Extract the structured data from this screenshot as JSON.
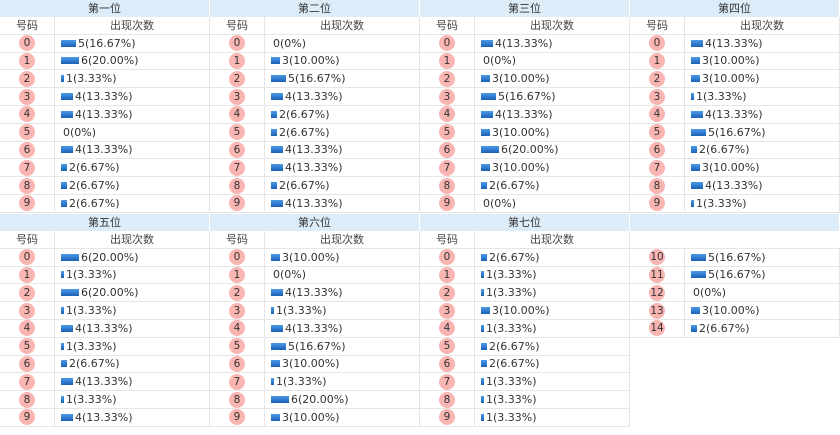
{
  "labels": {
    "number": "号码",
    "count": "出现次数"
  },
  "positions": [
    {
      "title": "第一位",
      "rows": [
        {
          "n": "0",
          "text": "5(16.67%)",
          "pct": 16.67
        },
        {
          "n": "1",
          "text": "6(20.00%)",
          "pct": 20.0
        },
        {
          "n": "2",
          "text": "1(3.33%)",
          "pct": 3.33
        },
        {
          "n": "3",
          "text": "4(13.33%)",
          "pct": 13.33
        },
        {
          "n": "4",
          "text": "4(13.33%)",
          "pct": 13.33
        },
        {
          "n": "5",
          "text": "0(0%)",
          "pct": 0
        },
        {
          "n": "6",
          "text": "4(13.33%)",
          "pct": 13.33
        },
        {
          "n": "7",
          "text": "2(6.67%)",
          "pct": 6.67
        },
        {
          "n": "8",
          "text": "2(6.67%)",
          "pct": 6.67
        },
        {
          "n": "9",
          "text": "2(6.67%)",
          "pct": 6.67
        }
      ]
    },
    {
      "title": "第二位",
      "rows": [
        {
          "n": "0",
          "text": "0(0%)",
          "pct": 0
        },
        {
          "n": "1",
          "text": "3(10.00%)",
          "pct": 10.0
        },
        {
          "n": "2",
          "text": "5(16.67%)",
          "pct": 16.67
        },
        {
          "n": "3",
          "text": "4(13.33%)",
          "pct": 13.33
        },
        {
          "n": "4",
          "text": "2(6.67%)",
          "pct": 6.67
        },
        {
          "n": "5",
          "text": "2(6.67%)",
          "pct": 6.67
        },
        {
          "n": "6",
          "text": "4(13.33%)",
          "pct": 13.33
        },
        {
          "n": "7",
          "text": "4(13.33%)",
          "pct": 13.33
        },
        {
          "n": "8",
          "text": "2(6.67%)",
          "pct": 6.67
        },
        {
          "n": "9",
          "text": "4(13.33%)",
          "pct": 13.33
        }
      ]
    },
    {
      "title": "第三位",
      "rows": [
        {
          "n": "0",
          "text": "4(13.33%)",
          "pct": 13.33
        },
        {
          "n": "1",
          "text": "0(0%)",
          "pct": 0
        },
        {
          "n": "2",
          "text": "3(10.00%)",
          "pct": 10.0
        },
        {
          "n": "3",
          "text": "5(16.67%)",
          "pct": 16.67
        },
        {
          "n": "4",
          "text": "4(13.33%)",
          "pct": 13.33
        },
        {
          "n": "5",
          "text": "3(10.00%)",
          "pct": 10.0
        },
        {
          "n": "6",
          "text": "6(20.00%)",
          "pct": 20.0
        },
        {
          "n": "7",
          "text": "3(10.00%)",
          "pct": 10.0
        },
        {
          "n": "8",
          "text": "2(6.67%)",
          "pct": 6.67
        },
        {
          "n": "9",
          "text": "0(0%)",
          "pct": 0
        }
      ]
    },
    {
      "title": "第四位",
      "rows": [
        {
          "n": "0",
          "text": "4(13.33%)",
          "pct": 13.33
        },
        {
          "n": "1",
          "text": "3(10.00%)",
          "pct": 10.0
        },
        {
          "n": "2",
          "text": "3(10.00%)",
          "pct": 10.0
        },
        {
          "n": "3",
          "text": "1(3.33%)",
          "pct": 3.33
        },
        {
          "n": "4",
          "text": "4(13.33%)",
          "pct": 13.33
        },
        {
          "n": "5",
          "text": "5(16.67%)",
          "pct": 16.67
        },
        {
          "n": "6",
          "text": "2(6.67%)",
          "pct": 6.67
        },
        {
          "n": "7",
          "text": "3(10.00%)",
          "pct": 10.0
        },
        {
          "n": "8",
          "text": "4(13.33%)",
          "pct": 13.33
        },
        {
          "n": "9",
          "text": "1(3.33%)",
          "pct": 3.33
        }
      ]
    },
    {
      "title": "第五位",
      "rows": [
        {
          "n": "0",
          "text": "6(20.00%)",
          "pct": 20.0
        },
        {
          "n": "1",
          "text": "1(3.33%)",
          "pct": 3.33
        },
        {
          "n": "2",
          "text": "6(20.00%)",
          "pct": 20.0
        },
        {
          "n": "3",
          "text": "1(3.33%)",
          "pct": 3.33
        },
        {
          "n": "4",
          "text": "4(13.33%)",
          "pct": 13.33
        },
        {
          "n": "5",
          "text": "1(3.33%)",
          "pct": 3.33
        },
        {
          "n": "6",
          "text": "2(6.67%)",
          "pct": 6.67
        },
        {
          "n": "7",
          "text": "4(13.33%)",
          "pct": 13.33
        },
        {
          "n": "8",
          "text": "1(3.33%)",
          "pct": 3.33
        },
        {
          "n": "9",
          "text": "4(13.33%)",
          "pct": 13.33
        }
      ]
    },
    {
      "title": "第六位",
      "rows": [
        {
          "n": "0",
          "text": "3(10.00%)",
          "pct": 10.0
        },
        {
          "n": "1",
          "text": "0(0%)",
          "pct": 0
        },
        {
          "n": "2",
          "text": "4(13.33%)",
          "pct": 13.33
        },
        {
          "n": "3",
          "text": "1(3.33%)",
          "pct": 3.33
        },
        {
          "n": "4",
          "text": "4(13.33%)",
          "pct": 13.33
        },
        {
          "n": "5",
          "text": "5(16.67%)",
          "pct": 16.67
        },
        {
          "n": "6",
          "text": "3(10.00%)",
          "pct": 10.0
        },
        {
          "n": "7",
          "text": "1(3.33%)",
          "pct": 3.33
        },
        {
          "n": "8",
          "text": "6(20.00%)",
          "pct": 20.0
        },
        {
          "n": "9",
          "text": "3(10.00%)",
          "pct": 10.0
        }
      ]
    },
    {
      "title": "第七位",
      "rows": [
        {
          "n": "0",
          "text": "2(6.67%)",
          "pct": 6.67
        },
        {
          "n": "1",
          "text": "1(3.33%)",
          "pct": 3.33
        },
        {
          "n": "2",
          "text": "1(3.33%)",
          "pct": 3.33
        },
        {
          "n": "3",
          "text": "3(10.00%)",
          "pct": 10.0
        },
        {
          "n": "4",
          "text": "1(3.33%)",
          "pct": 3.33
        },
        {
          "n": "5",
          "text": "2(6.67%)",
          "pct": 6.67
        },
        {
          "n": "6",
          "text": "2(6.67%)",
          "pct": 6.67
        },
        {
          "n": "7",
          "text": "1(3.33%)",
          "pct": 3.33
        },
        {
          "n": "8",
          "text": "1(3.33%)",
          "pct": 3.33
        },
        {
          "n": "9",
          "text": "1(3.33%)",
          "pct": 3.33
        }
      ]
    },
    {
      "title": "",
      "extra": true,
      "rows": [
        {
          "n": "10",
          "text": "5(16.67%)",
          "pct": 16.67
        },
        {
          "n": "11",
          "text": "5(16.67%)",
          "pct": 16.67
        },
        {
          "n": "12",
          "text": "0(0%)",
          "pct": 0
        },
        {
          "n": "13",
          "text": "3(10.00%)",
          "pct": 10.0
        },
        {
          "n": "14",
          "text": "2(6.67%)",
          "pct": 6.67
        }
      ]
    }
  ],
  "colors": {
    "header_bg": "#dcecf8",
    "ball": "#f9b5b2",
    "bar": "#1a5fb4"
  }
}
